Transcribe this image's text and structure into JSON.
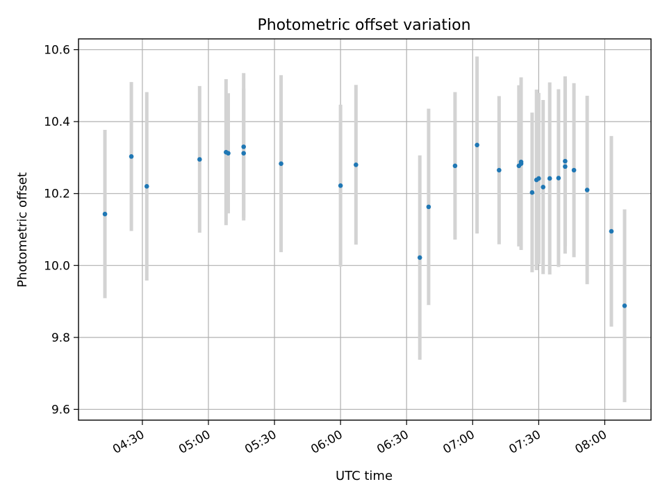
{
  "chart_data": {
    "type": "scatter",
    "title": "Photometric offset variation",
    "xlabel": "UTC time",
    "ylabel": "Photometric offset",
    "grid": true,
    "legend": false,
    "x_tick_labels": [
      "04:30",
      "05:00",
      "05:30",
      "06:00",
      "06:30",
      "07:00",
      "07:30",
      "08:00"
    ],
    "x_tick_values": [
      "04:30",
      "05:00",
      "05:30",
      "06:00",
      "06:30",
      "07:00",
      "07:30",
      "08:00"
    ],
    "y_tick_labels": [
      "9.6",
      "9.8",
      "10.0",
      "10.2",
      "10.4",
      "10.6"
    ],
    "y_tick_values": [
      9.6,
      9.8,
      10.0,
      10.2,
      10.4,
      10.6
    ],
    "xlim": [
      "04:01",
      "08:21"
    ],
    "ylim": [
      9.57,
      10.63
    ],
    "colors": {
      "marker": "#1f77b4",
      "errorbar": "#d3d3d3"
    },
    "series": [
      {
        "points": [
          {
            "x": "04:13",
            "y": 10.143,
            "err": 0.234
          },
          {
            "x": "04:25",
            "y": 10.303,
            "err": 0.207
          },
          {
            "x": "04:32",
            "y": 10.22,
            "err": 0.262
          },
          {
            "x": "04:56",
            "y": 10.295,
            "err": 0.204
          },
          {
            "x": "05:08",
            "y": 10.315,
            "err": 0.203
          },
          {
            "x": "05:09",
            "y": 10.312,
            "err": 0.167
          },
          {
            "x": "05:16",
            "y": 10.33,
            "err": 0.205
          },
          {
            "x": "05:16",
            "y": 10.312,
            "err": 0.18
          },
          {
            "x": "05:33",
            "y": 10.283,
            "err": 0.246
          },
          {
            "x": "06:00",
            "y": 10.222,
            "err": 0.225
          },
          {
            "x": "06:07",
            "y": 10.28,
            "err": 0.222
          },
          {
            "x": "06:36",
            "y": 10.022,
            "err": 0.284
          },
          {
            "x": "06:40",
            "y": 10.163,
            "err": 0.273
          },
          {
            "x": "06:52",
            "y": 10.277,
            "err": 0.205
          },
          {
            "x": "07:02",
            "y": 10.335,
            "err": 0.246
          },
          {
            "x": "07:12",
            "y": 10.265,
            "err": 0.206
          },
          {
            "x": "07:21",
            "y": 10.277,
            "err": 0.224
          },
          {
            "x": "07:22",
            "y": 10.288,
            "err": 0.232
          },
          {
            "x": "07:22",
            "y": 10.283,
            "err": 0.24
          },
          {
            "x": "07:27",
            "y": 10.203,
            "err": 0.222
          },
          {
            "x": "07:29",
            "y": 10.238,
            "err": 0.251
          },
          {
            "x": "07:30",
            "y": 10.242,
            "err": 0.238
          },
          {
            "x": "07:32",
            "y": 10.218,
            "err": 0.242
          },
          {
            "x": "07:35",
            "y": 10.242,
            "err": 0.267
          },
          {
            "x": "07:39",
            "y": 10.243,
            "err": 0.247
          },
          {
            "x": "07:42",
            "y": 10.29,
            "err": 0.236
          },
          {
            "x": "07:42",
            "y": 10.275,
            "err": 0.242
          },
          {
            "x": "07:46",
            "y": 10.265,
            "err": 0.242
          },
          {
            "x": "07:52",
            "y": 10.21,
            "err": 0.262
          },
          {
            "x": "08:03",
            "y": 10.095,
            "err": 0.265
          },
          {
            "x": "08:09",
            "y": 9.888,
            "err": 0.268
          }
        ]
      }
    ]
  }
}
